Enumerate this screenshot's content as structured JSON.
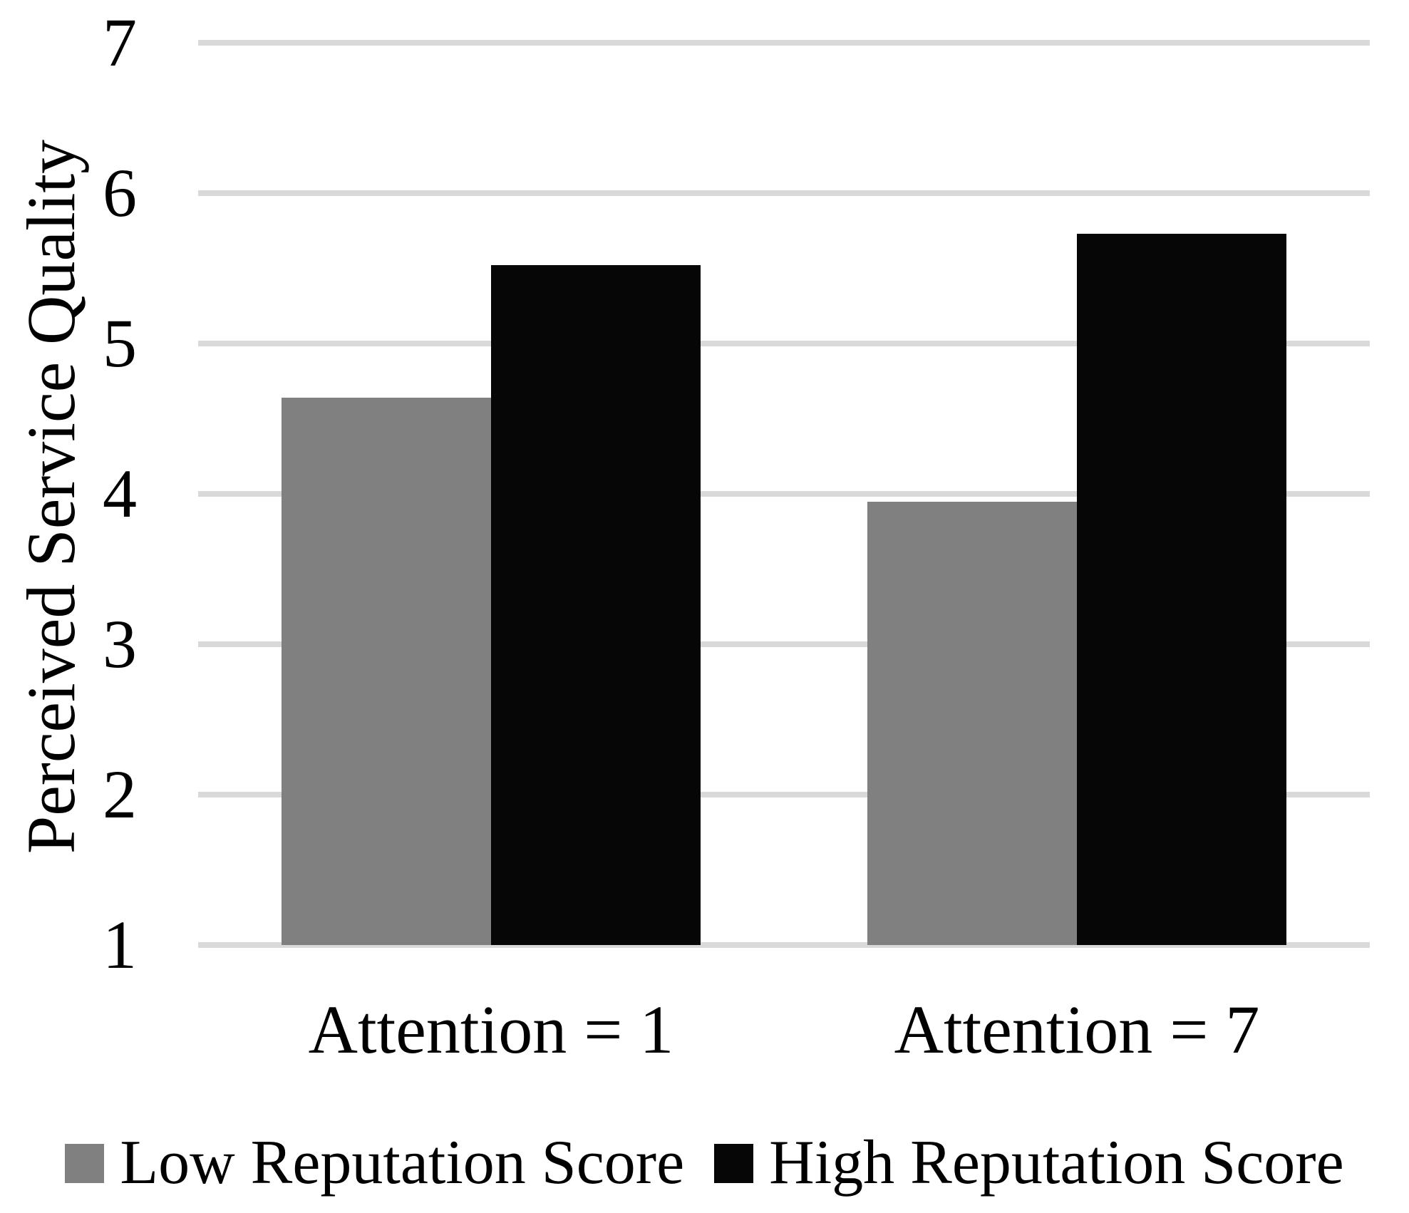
{
  "figure": {
    "background": "#ffffff",
    "text_color": "#000000"
  },
  "chart_data": {
    "type": "bar",
    "title": "",
    "categories": [
      "Attention = 1",
      "Attention = 7"
    ],
    "series": [
      {
        "name": "Low Reputation Score",
        "color": "#808080",
        "values": [
          4.64,
          3.95
        ]
      },
      {
        "name": "High Reputation Score",
        "color": "#060606",
        "values": [
          5.52,
          5.73
        ]
      }
    ],
    "xlabel": "",
    "ylabel": "Perceived Service Quality",
    "ylim": [
      1,
      7
    ],
    "yticks": [
      7,
      6,
      5,
      4,
      3,
      2,
      1
    ],
    "grid": "horizontal",
    "gridline_color": "#d9d9d9",
    "legend_position": "bottom",
    "legend_swatch_shape": "square",
    "bar_outline": "none"
  }
}
